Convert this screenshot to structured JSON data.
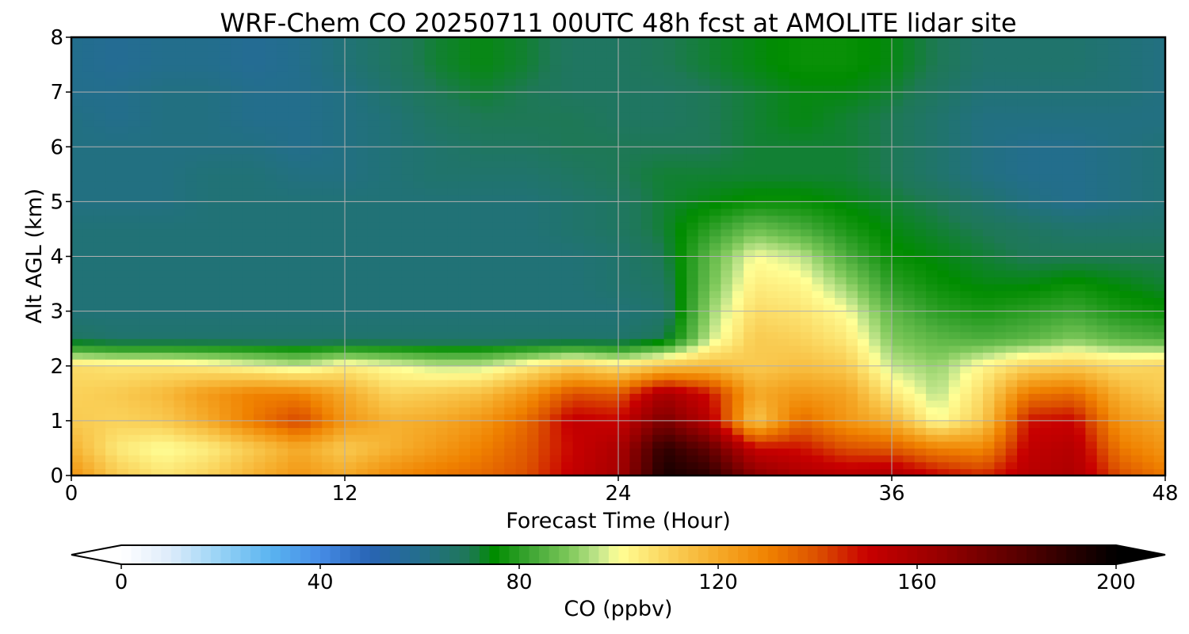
{
  "chart_data": {
    "type": "heatmap",
    "title": "WRF-Chem CO  20250711 00UTC 48h fcst at AMOLITE lidar site",
    "xlabel": "Forecast Time (Hour)",
    "ylabel": "Alt AGL (km)",
    "xlim": [
      0,
      48
    ],
    "ylim": [
      0,
      8
    ],
    "x_ticks": [
      0,
      12,
      24,
      36,
      48
    ],
    "y_ticks": [
      0,
      1,
      2,
      3,
      4,
      5,
      6,
      7,
      8
    ],
    "grid": true,
    "x": [
      0,
      2,
      4,
      6,
      8,
      10,
      12,
      14,
      16,
      18,
      20,
      22,
      24,
      26,
      28,
      30,
      32,
      34,
      36,
      38,
      40,
      42,
      44,
      46,
      48
    ],
    "y": [
      0,
      0.5,
      1,
      1.5,
      2,
      2.5,
      3,
      3.5,
      4,
      4.5,
      5,
      5.5,
      6,
      6.5,
      7,
      7.5,
      8
    ],
    "z": [
      [
        126,
        112,
        106,
        110,
        118,
        125,
        120,
        128,
        132,
        135,
        140,
        152,
        160,
        195,
        190,
        168,
        158,
        155,
        158,
        150,
        145,
        155,
        158,
        140,
        132
      ],
      [
        118,
        105,
        100,
        104,
        112,
        120,
        112,
        118,
        124,
        130,
        138,
        150,
        158,
        190,
        178,
        150,
        148,
        140,
        138,
        130,
        128,
        152,
        156,
        132,
        125
      ],
      [
        112,
        110,
        112,
        120,
        132,
        142,
        125,
        118,
        120,
        125,
        135,
        152,
        150,
        172,
        155,
        112,
        135,
        125,
        118,
        100,
        112,
        148,
        150,
        125,
        120
      ],
      [
        110,
        112,
        116,
        124,
        130,
        130,
        120,
        110,
        112,
        115,
        125,
        140,
        138,
        160,
        148,
        120,
        125,
        122,
        105,
        95,
        108,
        132,
        135,
        118,
        112
      ],
      [
        108,
        106,
        106,
        104,
        100,
        96,
        104,
        100,
        96,
        96,
        104,
        112,
        106,
        114,
        116,
        112,
        115,
        112,
        96,
        92,
        102,
        110,
        112,
        108,
        110
      ],
      [
        68,
        66,
        66,
        66,
        66,
        66,
        66,
        66,
        66,
        66,
        66,
        66,
        66,
        70,
        96,
        112,
        110,
        105,
        90,
        86,
        84,
        86,
        90,
        86,
        84
      ],
      [
        64,
        64,
        64,
        64,
        64,
        64,
        64,
        64,
        64,
        64,
        64,
        64,
        64,
        66,
        92,
        108,
        106,
        100,
        86,
        80,
        78,
        80,
        82,
        78,
        76
      ],
      [
        64,
        64,
        64,
        64,
        64,
        64,
        64,
        64,
        64,
        64,
        64,
        64,
        66,
        68,
        88,
        104,
        102,
        92,
        80,
        76,
        74,
        74,
        76,
        74,
        72
      ],
      [
        64,
        64,
        64,
        64,
        64,
        64,
        64,
        64,
        64,
        64,
        64,
        64,
        66,
        70,
        86,
        100,
        96,
        84,
        76,
        74,
        72,
        70,
        70,
        70,
        70
      ],
      [
        64,
        64,
        64,
        64,
        64,
        64,
        64,
        64,
        64,
        64,
        64,
        66,
        68,
        72,
        80,
        88,
        84,
        78,
        74,
        72,
        70,
        68,
        66,
        66,
        66
      ],
      [
        62,
        62,
        62,
        64,
        64,
        64,
        64,
        64,
        64,
        64,
        64,
        66,
        68,
        72,
        74,
        76,
        76,
        74,
        72,
        70,
        66,
        62,
        60,
        62,
        64
      ],
      [
        62,
        62,
        62,
        64,
        64,
        62,
        62,
        64,
        66,
        66,
        66,
        68,
        70,
        72,
        72,
        72,
        72,
        72,
        70,
        66,
        62,
        60,
        60,
        62,
        64
      ],
      [
        62,
        62,
        62,
        62,
        62,
        60,
        62,
        64,
        66,
        68,
        68,
        70,
        70,
        70,
        70,
        72,
        72,
        72,
        70,
        66,
        62,
        60,
        60,
        62,
        64
      ],
      [
        62,
        60,
        62,
        62,
        60,
        60,
        62,
        64,
        68,
        70,
        70,
        70,
        68,
        68,
        70,
        72,
        74,
        72,
        70,
        66,
        62,
        62,
        62,
        62,
        62
      ],
      [
        60,
        60,
        62,
        62,
        60,
        60,
        62,
        66,
        70,
        72,
        70,
        68,
        68,
        68,
        70,
        72,
        74,
        74,
        72,
        68,
        64,
        64,
        64,
        64,
        62
      ],
      [
        60,
        58,
        60,
        60,
        58,
        60,
        64,
        68,
        72,
        74,
        72,
        68,
        68,
        70,
        72,
        74,
        76,
        76,
        74,
        70,
        66,
        66,
        66,
        64,
        62
      ],
      [
        60,
        58,
        60,
        60,
        58,
        60,
        64,
        68,
        72,
        74,
        72,
        68,
        68,
        70,
        72,
        74,
        76,
        76,
        74,
        70,
        66,
        66,
        66,
        64,
        62
      ]
    ],
    "colorbar": {
      "label": "CO  (ppbv)",
      "min": 0,
      "max": 200,
      "ticks": [
        0,
        40,
        80,
        120,
        160,
        200
      ],
      "extend": "both",
      "orientation": "horizontal",
      "colormap": [
        [
          0,
          "#ffffff"
        ],
        [
          10,
          "#dcebfa"
        ],
        [
          20,
          "#96d2f5"
        ],
        [
          30,
          "#5ab4f0"
        ],
        [
          40,
          "#468ce6"
        ],
        [
          50,
          "#2864b4"
        ],
        [
          60,
          "#236e8c"
        ],
        [
          70,
          "#1e7856"
        ],
        [
          75,
          "#008c00"
        ],
        [
          82,
          "#3ca532"
        ],
        [
          90,
          "#7dc85a"
        ],
        [
          96,
          "#c3e68c"
        ],
        [
          100,
          "#ffff96"
        ],
        [
          110,
          "#fad25a"
        ],
        [
          120,
          "#f5aa28"
        ],
        [
          130,
          "#f08200"
        ],
        [
          140,
          "#dc5000"
        ],
        [
          150,
          "#c80000"
        ],
        [
          165,
          "#960000"
        ],
        [
          180,
          "#5a0000"
        ],
        [
          200,
          "#000000"
        ]
      ]
    }
  }
}
